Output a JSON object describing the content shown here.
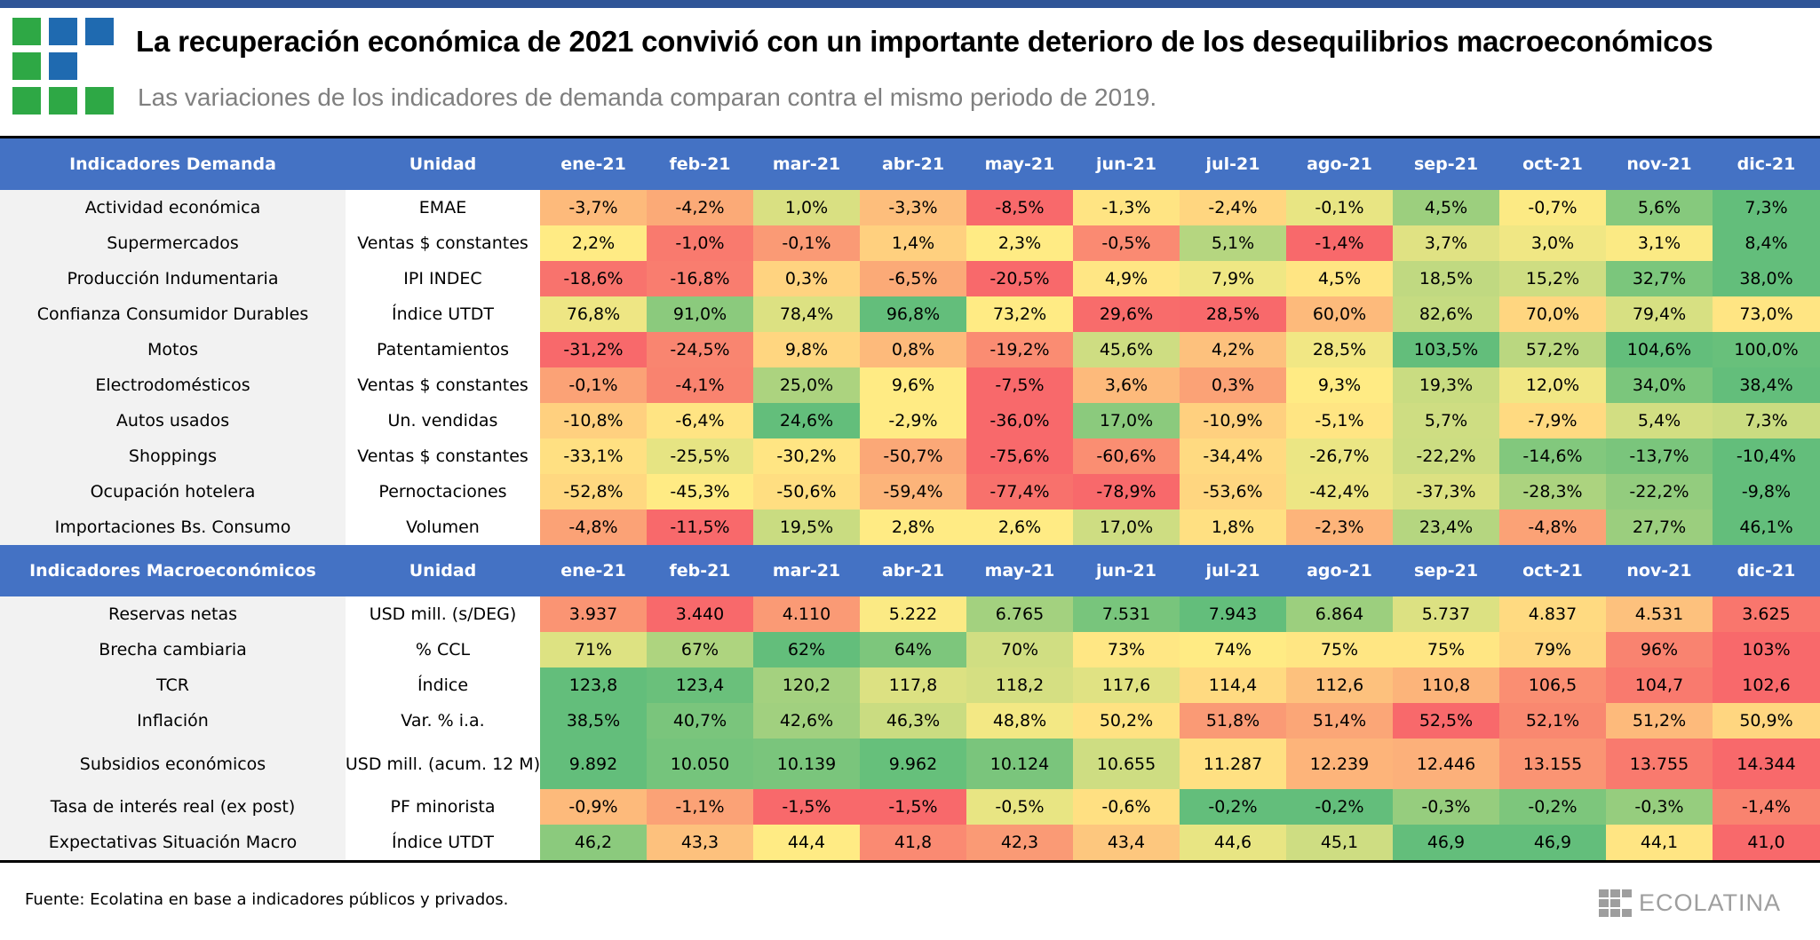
{
  "header": {
    "title": "La recuperación económica de 2021 convivió con un importante deterioro de los desequilibrios macroeconómicos",
    "subtitle": "Las variaciones de los indicadores de demanda comparan contra el mismo periodo de 2019."
  },
  "logo": {
    "icon": "ecolatina-grid-logo",
    "cells": [
      [
        "#2EA845",
        "#1F6AB0",
        "#1F6AB0"
      ],
      [
        "#2EA845",
        "#1F6AB0",
        ""
      ],
      [
        "#2EA845",
        "#2EA845",
        "#2EA845"
      ]
    ]
  },
  "colors": {
    "header_bg": "#4472C4",
    "top_bar": "#2F5597",
    "scale_red": "#F8696B",
    "scale_yellow": "#FFEB84",
    "scale_green": "#63BE7B"
  },
  "months": [
    "ene-21",
    "feb-21",
    "mar-21",
    "abr-21",
    "may-21",
    "jun-21",
    "jul-21",
    "ago-21",
    "sep-21",
    "oct-21",
    "nov-21",
    "dic-21"
  ],
  "demand": {
    "header_label": "Indicadores Demanda",
    "header_unit": "Unidad",
    "rows": [
      {
        "label": "Actividad económica",
        "unit": "EMAE",
        "values": [
          "-3,7%",
          "-4,2%",
          "1,0%",
          "-3,3%",
          "-8,5%",
          "-1,3%",
          "-2,4%",
          "-0,1%",
          "4,5%",
          "-0,7%",
          "5,6%",
          "7,3%"
        ],
        "colors": [
          "#FDBA7B",
          "#FBAA77",
          "#D9E082",
          "#FDBE7C",
          "#F8696B",
          "#FFE483",
          "#FFD680",
          "#E8E583",
          "#9CCF7E",
          "#FCEA84",
          "#86C97D",
          "#63BE7B"
        ]
      },
      {
        "label": "Supermercados",
        "unit": "Ventas $ constantes",
        "values": [
          "2,2%",
          "-1,0%",
          "-0,1%",
          "1,4%",
          "2,3%",
          "-0,5%",
          "5,1%",
          "-1,4%",
          "3,7%",
          "3,0%",
          "3,1%",
          "8,4%"
        ],
        "colors": [
          "#FFEB84",
          "#F97A6E",
          "#FA9A75",
          "#FFD07F",
          "#FFEB84",
          "#FA8A72",
          "#B5D680",
          "#F8696B",
          "#E0E283",
          "#F0E784",
          "#FBEA84",
          "#63BE7B"
        ]
      },
      {
        "label": "Producción Indumentaria",
        "unit": "IPI INDEC",
        "values": [
          "-18,6%",
          "-16,8%",
          "0,3%",
          "-6,5%",
          "-20,5%",
          "4,9%",
          "7,9%",
          "4,5%",
          "18,5%",
          "15,2%",
          "32,7%",
          "38,0%"
        ],
        "colors": [
          "#F8736D",
          "#F97D6F",
          "#FFD380",
          "#FBAA77",
          "#F8696B",
          "#FFE684",
          "#EFE784",
          "#FFE583",
          "#C0D981",
          "#CEDD82",
          "#7BC67C",
          "#63BE7B"
        ]
      },
      {
        "label": "Confianza Consumidor Durables",
        "unit": "Índice UTDT",
        "values": [
          "76,8%",
          "91,0%",
          "78,4%",
          "96,8%",
          "73,2%",
          "29,6%",
          "28,5%",
          "60,0%",
          "82,6%",
          "70,0%",
          "79,4%",
          "73,0%"
        ],
        "colors": [
          "#EEE684",
          "#8BCA7D",
          "#DCE182",
          "#63BE7B",
          "#FFEB84",
          "#F86C6B",
          "#F8696B",
          "#FDBA7B",
          "#C5DB81",
          "#FFD680",
          "#D7E082",
          "#FFE583"
        ]
      },
      {
        "label": "Motos",
        "unit": "Patentamientos",
        "values": [
          "-31,2%",
          "-24,5%",
          "9,8%",
          "0,8%",
          "-19,2%",
          "45,6%",
          "4,2%",
          "28,5%",
          "103,5%",
          "57,2%",
          "104,6%",
          "100,0%"
        ],
        "colors": [
          "#F8696B",
          "#F98570",
          "#FFD680",
          "#FDBA7B",
          "#FA8C72",
          "#CEDD82",
          "#FDC17D",
          "#F1E784",
          "#63BE7B",
          "#BAD780",
          "#63BE7B",
          "#68C07B"
        ]
      },
      {
        "label": "Electrodomésticos",
        "unit": "Ventas $ constantes",
        "values": [
          "-0,1%",
          "-4,1%",
          "25,0%",
          "9,6%",
          "-7,5%",
          "3,6%",
          "0,3%",
          "9,3%",
          "19,3%",
          "12,0%",
          "34,0%",
          "38,4%"
        ],
        "colors": [
          "#FBA276",
          "#F9836F",
          "#ACD37F",
          "#FFEB84",
          "#F8696B",
          "#FDBA7B",
          "#FBA276",
          "#FFEB84",
          "#C9DC81",
          "#F1E784",
          "#7BC67C",
          "#63BE7B"
        ]
      },
      {
        "label": "Autos usados",
        "unit": "Un. vendidas",
        "values": [
          "-10,8%",
          "-6,4%",
          "24,6%",
          "-2,9%",
          "-36,0%",
          "17,0%",
          "-10,9%",
          "-5,1%",
          "5,7%",
          "-7,9%",
          "5,4%",
          "7,3%"
        ],
        "colors": [
          "#FFD07F",
          "#FFE483",
          "#63BE7B",
          "#FFEB84",
          "#F8696B",
          "#8BCA7D",
          "#FFD07F",
          "#FFE583",
          "#CEDD82",
          "#FFDA81",
          "#D2DE82",
          "#CADC81"
        ]
      },
      {
        "label": "Shoppings",
        "unit": "Ventas $ constantes",
        "values": [
          "-33,1%",
          "-25,5%",
          "-30,2%",
          "-50,7%",
          "-75,6%",
          "-60,6%",
          "-34,4%",
          "-26,7%",
          "-22,2%",
          "-14,6%",
          "-13,7%",
          "-10,4%"
        ],
        "colors": [
          "#FFE082",
          "#E6E483",
          "#FFE583",
          "#FBA877",
          "#F8696B",
          "#FA8E72",
          "#FFDA81",
          "#EBE684",
          "#CCDD82",
          "#82C87D",
          "#7AC57C",
          "#63BE7B"
        ]
      },
      {
        "label": "Ocupación hotelera",
        "unit": "Pernoctaciones",
        "values": [
          "-52,8%",
          "-45,3%",
          "-50,6%",
          "-59,4%",
          "-77,4%",
          "-78,9%",
          "-53,6%",
          "-42,4%",
          "-37,3%",
          "-28,3%",
          "-22,2%",
          "-9,8%"
        ],
        "colors": [
          "#FFD880",
          "#FFEB84",
          "#FFDE81",
          "#FCB47A",
          "#F8716C",
          "#F8696B",
          "#FFD680",
          "#EDE684",
          "#DCE182",
          "#ACD37F",
          "#93CC7E",
          "#63BE7B"
        ]
      },
      {
        "label": "Importaciones Bs. Consumo",
        "unit": "Volumen",
        "values": [
          "-4,8%",
          "-11,5%",
          "19,5%",
          "2,8%",
          "2,6%",
          "17,0%",
          "1,8%",
          "-2,3%",
          "23,4%",
          "-4,8%",
          "27,7%",
          "46,1%"
        ],
        "colors": [
          "#FBA276",
          "#F8696B",
          "#C9DC81",
          "#FFEB84",
          "#FFEB84",
          "#CEDD82",
          "#FFE082",
          "#FDB47A",
          "#B5D680",
          "#FBA276",
          "#9BCE7E",
          "#63BE7B"
        ]
      }
    ]
  },
  "macro": {
    "header_label": "Indicadores Macroeconómicos",
    "header_unit": "Unidad",
    "rows": [
      {
        "label": "Reservas netas",
        "unit": "USD mill. (s/DEG)",
        "tall": false,
        "values": [
          "3.937",
          "3.440",
          "4.110",
          "5.222",
          "6.765",
          "7.531",
          "7.943",
          "6.864",
          "5.737",
          "4.837",
          "4.531",
          "3.625"
        ],
        "colors": [
          "#FA9473",
          "#F8696B",
          "#FA9A75",
          "#FBEA84",
          "#A3D17F",
          "#78C57C",
          "#63BE7B",
          "#9CCF7E",
          "#DCE182",
          "#FFDA81",
          "#FDC17D",
          "#F9766D"
        ]
      },
      {
        "label": "Brecha cambiaria",
        "unit": "% CCL",
        "tall": false,
        "values": [
          "71%",
          "67%",
          "62%",
          "64%",
          "70%",
          "73%",
          "74%",
          "75%",
          "75%",
          "79%",
          "96%",
          "103%"
        ],
        "colors": [
          "#DDE282",
          "#AED47F",
          "#63BE7B",
          "#7DC67C",
          "#D0DE82",
          "#FFE784",
          "#FFEB84",
          "#FFE683",
          "#FFE683",
          "#FFD680",
          "#F98370",
          "#F8696B"
        ]
      },
      {
        "label": "TCR",
        "unit": "Índice",
        "tall": false,
        "values": [
          "123,8",
          "123,4",
          "120,2",
          "117,8",
          "118,2",
          "117,6",
          "114,4",
          "112,6",
          "110,8",
          "106,5",
          "104,7",
          "102,6"
        ],
        "colors": [
          "#63BE7B",
          "#6AC07B",
          "#A4D17F",
          "#DCE182",
          "#D5DF82",
          "#E0E283",
          "#FFDA81",
          "#FDC17D",
          "#FCB47A",
          "#FA8E72",
          "#F97A6E",
          "#F8696B"
        ]
      },
      {
        "label": "Inflación",
        "unit": "Var. % i.a.",
        "tall": false,
        "values": [
          "38,5%",
          "40,7%",
          "42,6%",
          "46,3%",
          "48,8%",
          "50,2%",
          "51,8%",
          "51,4%",
          "52,5%",
          "52,1%",
          "51,2%",
          "50,9%"
        ],
        "colors": [
          "#63BE7B",
          "#7AC57C",
          "#A1D07F",
          "#CADC81",
          "#F3E884",
          "#FFE282",
          "#FA9A75",
          "#FBA677",
          "#F8696B",
          "#F98870",
          "#FDBA7B",
          "#FFD680"
        ]
      },
      {
        "label": "Subsidios económicos",
        "unit": "USD mill. (acum. 12 M)",
        "tall": true,
        "values": [
          "9.892",
          "10.050",
          "10.139",
          "9.962",
          "10.124",
          "10.655",
          "11.287",
          "12.239",
          "12.446",
          "13.155",
          "13.755",
          "14.344"
        ],
        "colors": [
          "#63BE7B",
          "#75C47C",
          "#7AC57C",
          "#66C07B",
          "#7AC57C",
          "#CEDD82",
          "#FFE082",
          "#FDB47A",
          "#FCB07A",
          "#FA9473",
          "#F97A6E",
          "#F8696B"
        ]
      },
      {
        "label": "Tasa de interés real (ex post)",
        "unit": "PF minorista",
        "tall": false,
        "values": [
          "-0,9%",
          "-1,1%",
          "-1,5%",
          "-1,5%",
          "-0,5%",
          "-0,6%",
          "-0,2%",
          "-0,2%",
          "-0,3%",
          "-0,2%",
          "-0,3%",
          "-1,4%"
        ],
        "colors": [
          "#FDBA7B",
          "#FBA276",
          "#F8696B",
          "#F8696B",
          "#E8E583",
          "#FFE082",
          "#63BE7B",
          "#63BE7B",
          "#96CD7E",
          "#7DC67C",
          "#96CD7E",
          "#F9836F"
        ]
      },
      {
        "label": "Expectativas Situación Macro",
        "unit": "Índice UTDT",
        "tall": false,
        "values": [
          "46,2",
          "43,3",
          "44,4",
          "41,8",
          "42,3",
          "43,4",
          "44,6",
          "45,1",
          "46,9",
          "46,9",
          "44,1",
          "41,0"
        ],
        "colors": [
          "#8BCA7D",
          "#FDC17D",
          "#FFEB84",
          "#FA8A72",
          "#FA9A75",
          "#FDC77E",
          "#E8E583",
          "#CEDD82",
          "#63BE7B",
          "#63BE7B",
          "#FFE583",
          "#F8696B"
        ]
      }
    ]
  },
  "footer": {
    "source": "Fuente: Ecolatina en base a indicadores públicos y privados.",
    "brand_icon": "ecolatina-grid-logo",
    "brand": "ECOLATINA"
  }
}
